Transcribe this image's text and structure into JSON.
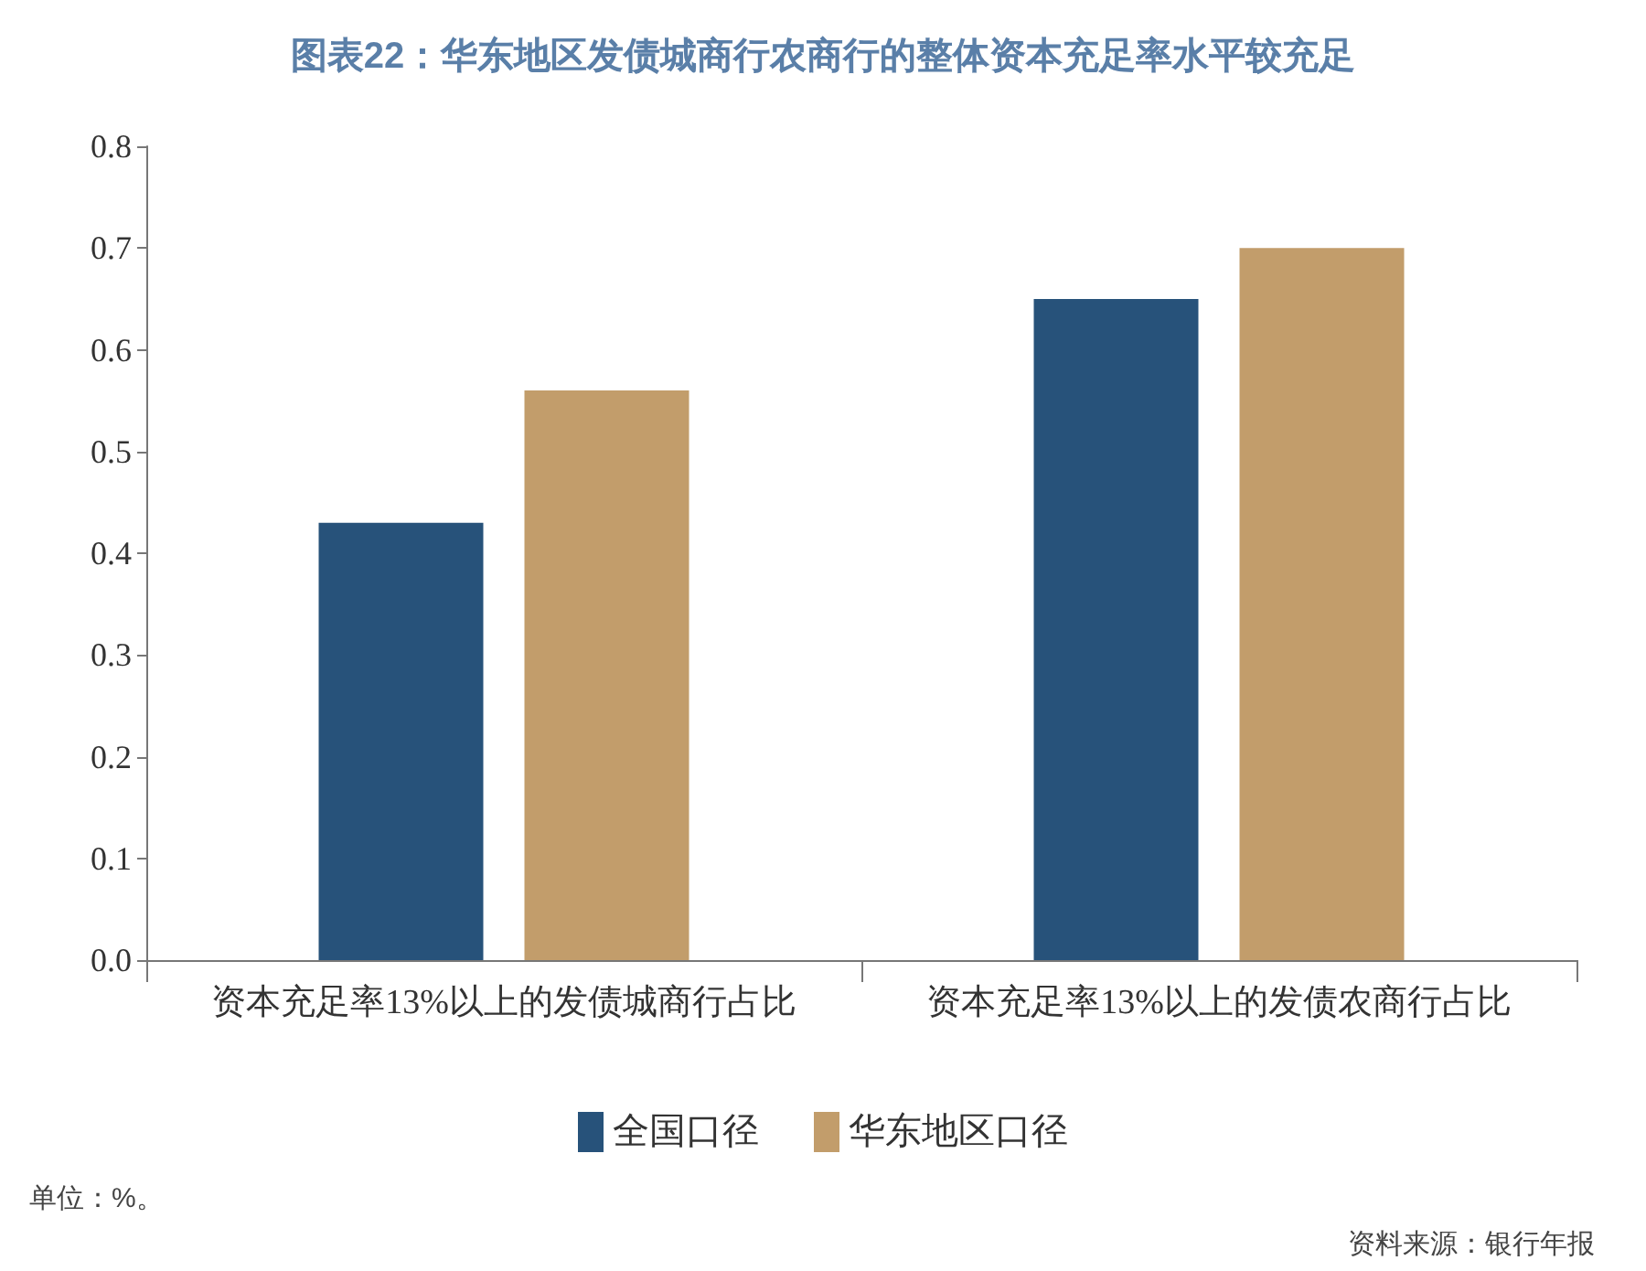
{
  "chart_data": {
    "type": "bar",
    "title": "图表22：华东地区发债城商行农商行的整体资本充足率水平较充足",
    "categories": [
      "资本充足率13%以上的发债城商行占比",
      "资本充足率13%以上的发债农商行占比"
    ],
    "series": [
      {
        "name": "全国口径",
        "color": "#27527a",
        "values": [
          0.43,
          0.65
        ]
      },
      {
        "name": "华东地区口径",
        "color": "#c29d6b",
        "values": [
          0.56,
          0.7
        ]
      }
    ],
    "ylim": [
      0,
      0.8
    ],
    "yticks": [
      {
        "value": 0,
        "label": "0.0"
      },
      0.1,
      0.2,
      0.3,
      0.4,
      0.5,
      0.6,
      0.7,
      0.8
    ],
    "grid": false,
    "legend": "bottom",
    "annotations": [
      "单位：%。",
      "资料来源：银行年报"
    ]
  }
}
